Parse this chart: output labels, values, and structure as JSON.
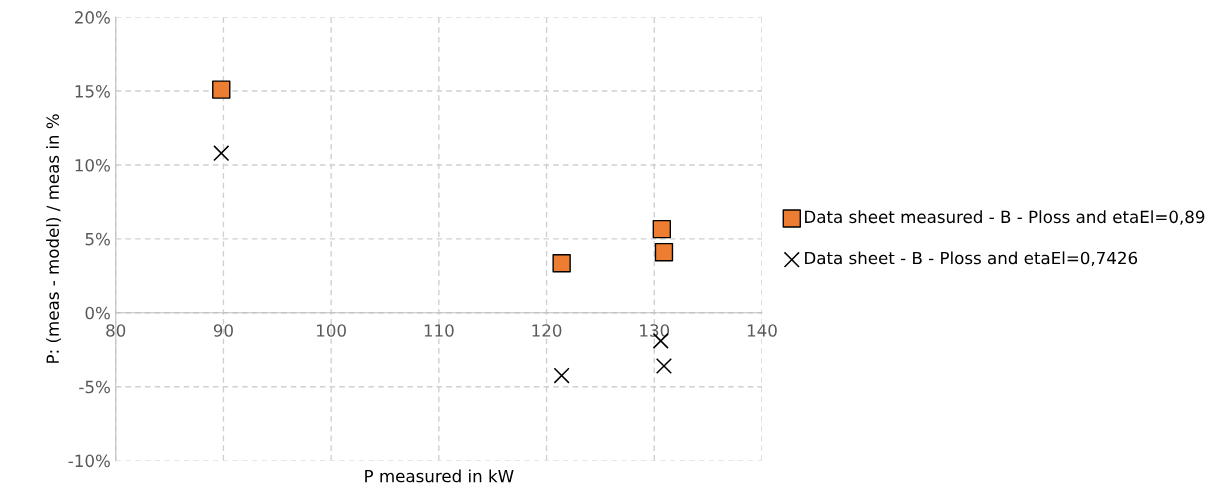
{
  "chart_data": {
    "type": "scatter",
    "xlabel": "P measured in kW",
    "ylabel": "P: (meas - model) / meas in %",
    "series": [
      {
        "name": "Data sheet measured - B - Ploss and etaEl=0,89",
        "color": "#ed7d31",
        "marker": "square",
        "x": [
          89.8,
          121.4,
          130.7,
          130.9
        ],
        "values": [
          15.1,
          3.35,
          5.66,
          4.1
        ]
      },
      {
        "name": "Data sheet - B - Ploss and etaEl=0,7426",
        "color": "#000000",
        "marker": "cross",
        "x": [
          89.8,
          121.4,
          130.6,
          130.9
        ],
        "values": [
          10.8,
          -4.25,
          -1.9,
          -3.6
        ]
      }
    ],
    "xlim": [
      80,
      140
    ],
    "xticks": [
      80,
      90,
      100,
      110,
      120,
      130,
      140
    ],
    "ylim": [
      -10,
      20
    ],
    "yticks": [
      {
        "value": -10,
        "label": "-10%"
      },
      {
        "value": -5,
        "label": "-5%"
      },
      {
        "value": 0,
        "label": "0%"
      },
      {
        "value": 5,
        "label": "5%"
      },
      {
        "value": 10,
        "label": "10%"
      },
      {
        "value": 15,
        "label": "15%"
      },
      {
        "value": 20,
        "label": "20%"
      }
    ],
    "grid": true,
    "legend": "right"
  }
}
